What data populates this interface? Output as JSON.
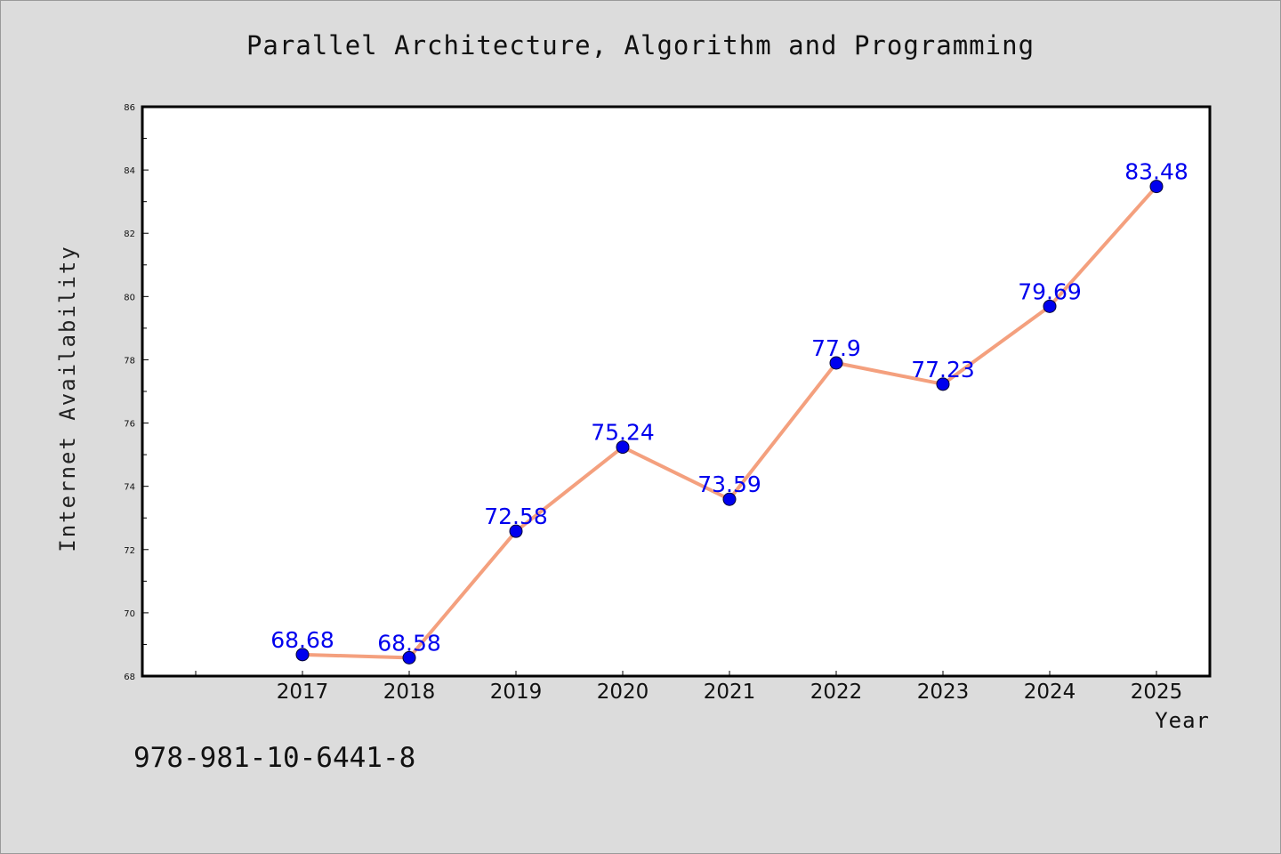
{
  "chart_data": {
    "type": "line",
    "title": "Parallel Architecture, Algorithm and Programming",
    "xlabel": "Year",
    "ylabel": "Internet Availability",
    "x": [
      "2017",
      "2018",
      "2019",
      "2020",
      "2021",
      "2022",
      "2023",
      "2024",
      "2025"
    ],
    "series": [
      {
        "values": [
          68.68,
          68.58,
          72.58,
          75.24,
          73.59,
          77.9,
          77.23,
          79.69,
          83.48
        ],
        "data_labels": [
          "68.68",
          "68.58",
          "72.58",
          "75.24",
          "73.59",
          "77.9",
          "77.23",
          "79.69",
          "83.48"
        ]
      }
    ],
    "ylim": [
      68,
      86
    ],
    "yticks": [
      "68",
      "70",
      "72",
      "74",
      "76",
      "78",
      "80",
      "82",
      "84",
      "86"
    ],
    "grid": false,
    "legend": "none",
    "colors": {
      "line": "#f4a07e",
      "marker": "#0000ee",
      "data_label": "#0000ee",
      "background": "#dcdcdc",
      "plot_background": "#ffffff"
    }
  },
  "footer": {
    "isbn": "978-981-10-6441-8"
  }
}
